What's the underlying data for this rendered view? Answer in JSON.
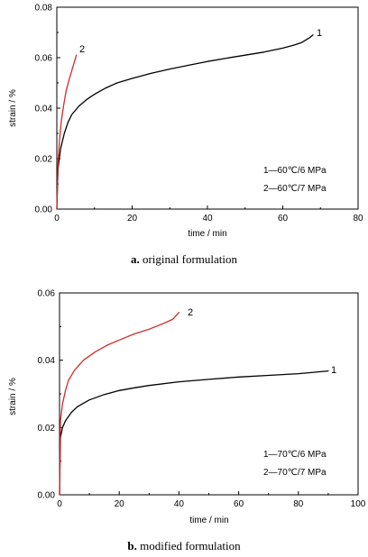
{
  "chart_data": [
    {
      "type": "line",
      "caption_letter": "a.",
      "caption_text": "original formulation",
      "xlabel": "time / min",
      "ylabel": "strain / %",
      "xlim": [
        0,
        80
      ],
      "ylim": [
        0,
        0.08
      ],
      "x_ticks": [
        "0",
        "20",
        "40",
        "60",
        "80"
      ],
      "y_ticks": [
        "0.00",
        "0.02",
        "0.04",
        "0.06",
        "0.08"
      ],
      "legend": [
        "1—60℃/6 MPa",
        "2—60℃/7 MPa"
      ],
      "legend_position": "bottom-right",
      "series": [
        {
          "name": "1",
          "color": "#000000",
          "x": [
            0,
            0.3,
            1,
            2,
            3,
            4,
            6,
            8,
            10,
            13,
            16,
            20,
            25,
            30,
            35,
            40,
            45,
            50,
            55,
            60,
            63,
            65,
            67,
            68
          ],
          "y": [
            0.0,
            0.016,
            0.024,
            0.03,
            0.0345,
            0.0375,
            0.041,
            0.0435,
            0.0455,
            0.048,
            0.05,
            0.0518,
            0.0538,
            0.0555,
            0.057,
            0.0585,
            0.0598,
            0.061,
            0.0622,
            0.0638,
            0.065,
            0.066,
            0.0678,
            0.069
          ]
        },
        {
          "name": "2",
          "color": "#d42a2a",
          "x": [
            0,
            0.3,
            0.7,
            1.2,
            1.8,
            2.5,
            3.2,
            4.0,
            4.8,
            5.2
          ],
          "y": [
            0.0,
            0.018,
            0.027,
            0.035,
            0.041,
            0.047,
            0.051,
            0.055,
            0.059,
            0.061
          ]
        }
      ]
    },
    {
      "type": "line",
      "caption_letter": "b.",
      "caption_text": "modified formulation",
      "xlabel": "time / min",
      "ylabel": "strain / %",
      "xlim": [
        0,
        100
      ],
      "ylim": [
        0,
        0.06
      ],
      "x_ticks": [
        "0",
        "20",
        "40",
        "60",
        "80",
        "100"
      ],
      "y_ticks": [
        "0.00",
        "0.02",
        "0.04",
        "0.06"
      ],
      "legend": [
        "1—70℃/6 MPa",
        "2—70℃/7 MPa"
      ],
      "legend_position": "bottom-right",
      "series": [
        {
          "name": "1",
          "color": "#000000",
          "x": [
            0,
            0.3,
            1,
            2,
            4,
            6,
            10,
            15,
            20,
            25,
            30,
            40,
            50,
            60,
            70,
            80,
            85,
            90
          ],
          "y": [
            0.0,
            0.017,
            0.02,
            0.022,
            0.0245,
            0.0262,
            0.0282,
            0.0298,
            0.031,
            0.0318,
            0.0325,
            0.0336,
            0.0343,
            0.035,
            0.0355,
            0.036,
            0.0364,
            0.0368
          ]
        },
        {
          "name": "2",
          "color": "#d42a2a",
          "x": [
            0,
            0.3,
            1,
            2,
            3,
            5,
            8,
            12,
            16,
            20,
            25,
            30,
            35,
            38,
            40
          ],
          "y": [
            0.0,
            0.022,
            0.027,
            0.031,
            0.034,
            0.037,
            0.04,
            0.0425,
            0.0445,
            0.046,
            0.0478,
            0.0492,
            0.051,
            0.0522,
            0.0542
          ]
        }
      ]
    }
  ]
}
